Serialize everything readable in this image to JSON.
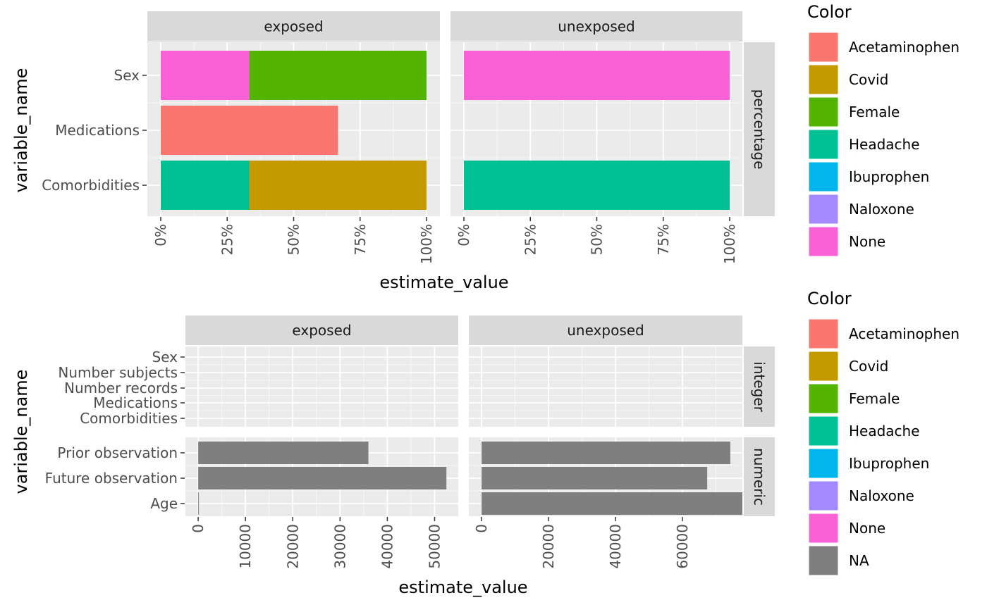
{
  "chart_data": [
    {
      "type": "bar",
      "stacked": true,
      "orientation": "horizontal",
      "xlabel": "estimate_value",
      "ylabel": "variable_name",
      "facet_columns": [
        "exposed",
        "unexposed"
      ],
      "facet_row": "percentage",
      "x_ticks": [
        "0%",
        "25%",
        "50%",
        "75%",
        "100%"
      ],
      "xlim": [
        0,
        100
      ],
      "categories": [
        "Sex",
        "Medications",
        "Comorbidities"
      ],
      "panels": [
        {
          "column": "exposed",
          "bars": [
            {
              "category": "Sex",
              "segments": [
                {
                  "name": "None",
                  "start": 0,
                  "end": 33.3
                },
                {
                  "name": "Female",
                  "start": 33.3,
                  "end": 100
                }
              ]
            },
            {
              "category": "Medications",
              "segments": [
                {
                  "name": "Acetaminophen",
                  "start": 0,
                  "end": 66.7
                }
              ]
            },
            {
              "category": "Comorbidities",
              "segments": [
                {
                  "name": "Headache",
                  "start": 0,
                  "end": 33.3
                },
                {
                  "name": "Covid",
                  "start": 33.3,
                  "end": 100
                }
              ]
            }
          ]
        },
        {
          "column": "unexposed",
          "bars": [
            {
              "category": "Sex",
              "segments": [
                {
                  "name": "None",
                  "start": 0,
                  "end": 100
                }
              ]
            },
            {
              "category": "Comorbidities",
              "segments": [
                {
                  "name": "Headache",
                  "start": 0,
                  "end": 100
                }
              ]
            }
          ]
        }
      ],
      "legend": {
        "title": "Color",
        "position": "right",
        "items": [
          "Acetaminophen",
          "Covid",
          "Female",
          "Headache",
          "Ibuprophen",
          "Naloxone",
          "None"
        ]
      }
    },
    {
      "type": "bar",
      "orientation": "horizontal",
      "xlabel": "estimate_value",
      "ylabel": "variable_name",
      "facet_columns": [
        "exposed",
        "unexposed"
      ],
      "facet_rows": [
        "integer",
        "numeric"
      ],
      "integer_categories": [
        "Sex",
        "Number subjects",
        "Number records",
        "Medications",
        "Comorbidities"
      ],
      "numeric_categories": [
        "Prior observation",
        "Future observation",
        "Age"
      ],
      "columns": [
        {
          "column": "exposed",
          "x_ticks": [
            "0",
            "10000",
            "20000",
            "30000",
            "40000",
            "50000"
          ],
          "tick_values": [
            0,
            10000,
            20000,
            30000,
            40000,
            50000
          ],
          "xlim": [
            -2700,
            55000
          ],
          "values": {
            "Prior observation": 36000,
            "Future observation": 52500,
            "Age": 40
          }
        },
        {
          "column": "unexposed",
          "x_ticks": [
            "0",
            "20000",
            "40000",
            "60000"
          ],
          "tick_values": [
            0,
            20000,
            40000,
            60000
          ],
          "xlim": [
            -3800,
            77900
          ],
          "values": {
            "Prior observation": 74300,
            "Future observation": 67400,
            "Age": 77900
          }
        }
      ],
      "legend": {
        "title": "Color",
        "position": "right",
        "items": [
          "Acetaminophen",
          "Covid",
          "Female",
          "Headache",
          "Ibuprophen",
          "Naloxone",
          "None",
          "NA"
        ]
      }
    }
  ],
  "colors": {
    "Acetaminophen": "#F8766D",
    "Covid": "#C49A00",
    "Female": "#53B400",
    "Headache": "#00C094",
    "Ibuprophen": "#00B6EB",
    "Naloxone": "#A58AFF",
    "None": "#FB61D7",
    "NA": "#7F7F7F",
    "panel": "#EBEBEB",
    "strip": "#D9D9D9"
  }
}
